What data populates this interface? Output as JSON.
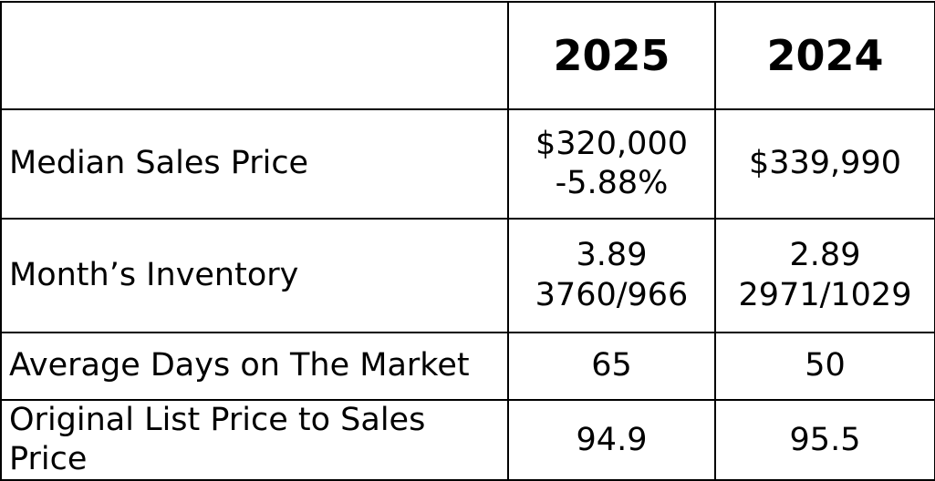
{
  "table": {
    "columns": [
      "2025",
      "2024"
    ],
    "rows": [
      {
        "label": "Median Sales Price",
        "cells": [
          [
            "$320,000",
            "-5.88%"
          ],
          [
            "$339,990"
          ]
        ]
      },
      {
        "label": "Month’s Inventory",
        "cells": [
          [
            "3.89",
            "3760/966"
          ],
          [
            "2.89",
            "2971/1029"
          ]
        ]
      },
      {
        "label": "Average Days on The Market",
        "cells": [
          [
            "65"
          ],
          [
            "50"
          ]
        ]
      },
      {
        "label": "Original List Price to Sales Price",
        "cells": [
          [
            "94.9"
          ],
          [
            "95.5"
          ]
        ]
      }
    ]
  }
}
